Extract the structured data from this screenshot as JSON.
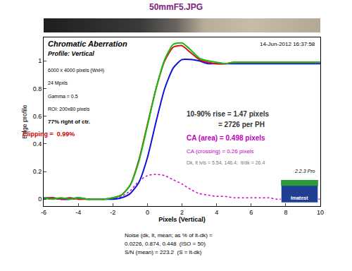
{
  "chart_data": {
    "type": "line",
    "title": "50mmF5.JPG",
    "x_label": "Pixels (Vertical)",
    "y_label": "Edge profile",
    "x": [
      -6,
      -5.5,
      -5,
      -4.5,
      -4,
      -3.5,
      -3,
      -2.5,
      -2,
      -1.5,
      -1,
      -0.5,
      0,
      0.5,
      1,
      1.5,
      2,
      2.5,
      3,
      3.5,
      4,
      4.5,
      5,
      5.5,
      6,
      6.5,
      7,
      7.5,
      8,
      8.5,
      9,
      9.5,
      10
    ],
    "series": [
      {
        "color": "#d000d0",
        "line_style": "dotted",
        "values": [
          0,
          0,
          0,
          0,
          0,
          0,
          0,
          0,
          0,
          0.02,
          0.06,
          0.13,
          0.17,
          0.18,
          0.17,
          0.14,
          0.11,
          0.07,
          0.04,
          0.03,
          0.02,
          0.02,
          0.01,
          0.01,
          0.01,
          0.01,
          0.01,
          0,
          0,
          0,
          0,
          0,
          0
        ]
      },
      {
        "color": "#1010e0",
        "line_style": "solid",
        "values": [
          0,
          0.01,
          0,
          0,
          0.01,
          0,
          0,
          0,
          0,
          0.01,
          0.04,
          0.12,
          0.3,
          0.56,
          0.8,
          0.95,
          1.01,
          1.01,
          1.0,
          0.98,
          0.98,
          0.98,
          0.98,
          0.98,
          0.98,
          0.98,
          0.98,
          0.98,
          0.98,
          0.98,
          0.98,
          0.98,
          0.98
        ]
      },
      {
        "color": "#e01010",
        "line_style": "solid",
        "values": [
          0.01,
          0.01,
          0,
          0.01,
          0,
          0,
          0,
          0,
          0.01,
          0.03,
          0.1,
          0.28,
          0.54,
          0.8,
          1.0,
          1.1,
          1.11,
          1.06,
          1.01,
          0.99,
          0.98,
          0.98,
          0.99,
          0.99,
          0.99,
          0.99,
          0.99,
          0.99,
          0.99,
          0.99,
          0.99,
          0.99,
          0.99
        ]
      },
      {
        "color": "#10c010",
        "line_style": "solid",
        "values": [
          0.01,
          0,
          0.01,
          0,
          0.01,
          0,
          0,
          0,
          0.01,
          0.03,
          0.1,
          0.27,
          0.53,
          0.8,
          1.01,
          1.12,
          1.13,
          1.08,
          1.02,
          1.0,
          0.99,
          0.98,
          0.99,
          0.99,
          0.99,
          0.99,
          0.99,
          0.99,
          0.99,
          0.99,
          0.99,
          0.99,
          0.99
        ]
      }
    ],
    "xlim": [
      -6,
      10
    ],
    "xticks": [
      -6,
      -4,
      -2,
      0,
      2,
      4,
      6,
      8,
      10
    ],
    "ylim": [
      -0.05,
      1.17
    ],
    "yticks": [
      0,
      0.2,
      0.4,
      0.6,
      0.8,
      1
    ],
    "grid": false,
    "annotations": [
      "Chromatic Aberration",
      "Profile: Vertical",
      "14-Jun-2012 16:37:58",
      "6000 x 4000 pixels (WxH)",
      "24 Mpxls",
      "Gamma = 0.5",
      "ROI: 200x80 pixels",
      "77% right of ctr.",
      "Clipping =  0.99%",
      "10-90% rise = 1.47 pixels",
      "= 2726 per PH",
      "CA (area) = 0.498 pixels",
      "CA (crossing) = 0.26 pixels",
      "Dk, lt lvls = 5.54, 146.4;  lt/dk = 26.4",
      "2.2.3 Pro",
      "Imatest"
    ],
    "notes": [
      "Noise (dk, lt, mean; as % of lt-dk) =",
      "0.0226, 0.874, 0.448  (ISO = 50)",
      "S/N (mean) = 223.2  (S = lt-dk)"
    ]
  }
}
